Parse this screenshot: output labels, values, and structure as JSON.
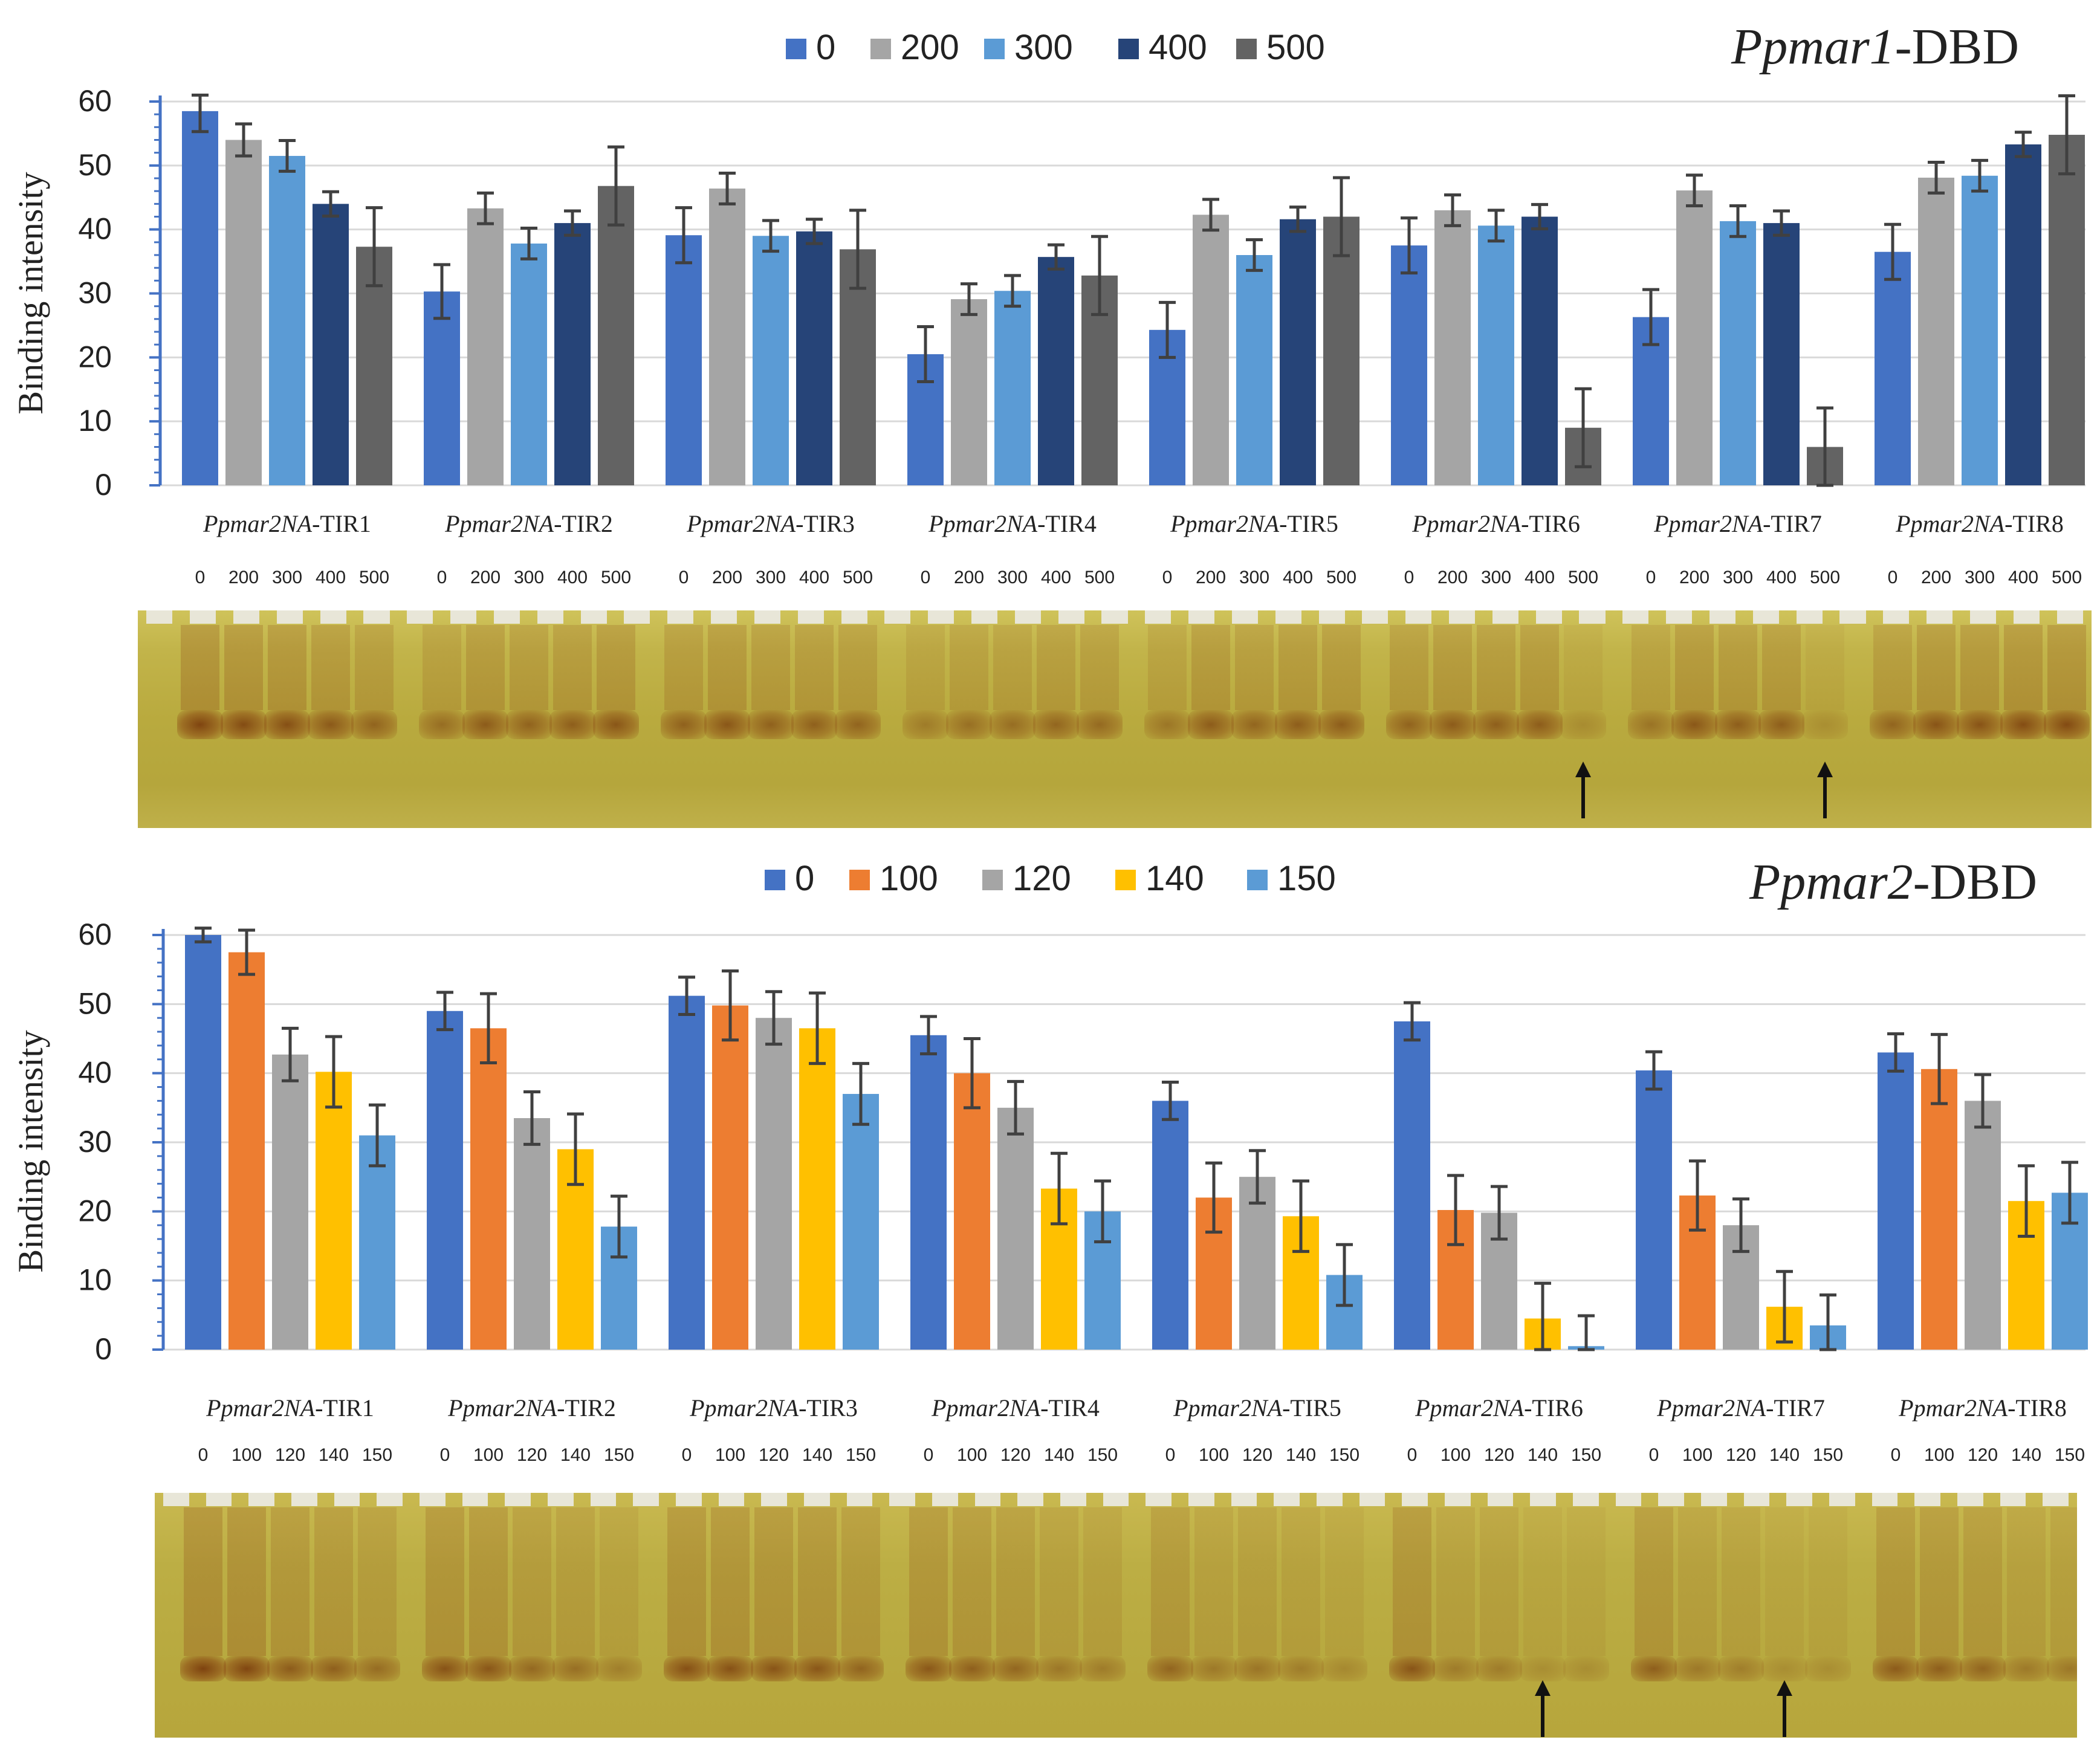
{
  "chart_data": [
    {
      "type": "bar",
      "title": "Ppmar1-DBD",
      "title_italic": "Ppmar1",
      "title_suffix": "-DBD",
      "ylabel": "Binding intensity",
      "xlabel": "",
      "ylim": [
        0,
        60
      ],
      "yticks": [
        "0",
        "10",
        "20",
        "30",
        "40",
        "50",
        "60"
      ],
      "legend_position": "top-center",
      "categories": [
        "Ppmar2NA-TIR1",
        "Ppmar2NA-TIR2",
        "Ppmar2NA-TIR3",
        "Ppmar2NA-TIR4",
        "Ppmar2NA-TIR5",
        "Ppmar2NA-TIR6",
        "Ppmar2NA-TIR7",
        "Ppmar2NA-TIR8"
      ],
      "category_prefix": "Ppmar2NA",
      "category_suffixes": [
        "-TIR1",
        "-TIR2",
        "-TIR3",
        "-TIR4",
        "-TIR5",
        "-TIR6",
        "-TIR7",
        "-TIR8"
      ],
      "lane_labels": [
        "0",
        "200",
        "300",
        "400",
        "500"
      ],
      "arrows_under": [
        "Ppmar2NA-TIR6",
        "Ppmar2NA-TIR7"
      ],
      "series": [
        {
          "name": "0",
          "color": "#4472c4",
          "values": [
            58.5,
            30.3,
            39.1,
            20.5,
            24.3,
            37.5,
            26.3,
            36.5
          ],
          "errors": [
            3.2,
            4.2,
            4.3,
            4.3,
            4.3,
            4.3,
            4.3,
            4.3
          ]
        },
        {
          "name": "200",
          "color": "#a5a5a5",
          "values": [
            54,
            43.3,
            46.4,
            29.1,
            42.3,
            43,
            46.1,
            48.1
          ],
          "errors": [
            2.5,
            2.4,
            2.4,
            2.4,
            2.4,
            2.4,
            2.4,
            2.4
          ]
        },
        {
          "name": "300",
          "color": "#5b9bd5",
          "values": [
            51.5,
            37.8,
            39,
            30.4,
            36,
            40.6,
            41.3,
            48.4
          ],
          "errors": [
            2.4,
            2.4,
            2.4,
            2.4,
            2.4,
            2.4,
            2.4,
            2.4
          ]
        },
        {
          "name": "400",
          "color": "#264478",
          "values": [
            44,
            41,
            39.7,
            35.7,
            41.6,
            42,
            41,
            53.3
          ],
          "errors": [
            1.9,
            1.9,
            1.9,
            1.9,
            1.9,
            1.9,
            1.9,
            1.9
          ]
        },
        {
          "name": "500",
          "color": "#636363",
          "values": [
            37.3,
            46.8,
            36.9,
            32.8,
            42,
            9,
            6,
            54.8
          ],
          "errors": [
            6.1,
            6.1,
            6.1,
            6.1,
            6.1,
            6.1,
            6.1,
            6.1
          ]
        }
      ]
    },
    {
      "type": "bar",
      "title": "Ppmar2-DBD",
      "title_italic": "Ppmar2",
      "title_suffix": "-DBD",
      "ylabel": "Binding intensity",
      "xlabel": "",
      "ylim": [
        0,
        60
      ],
      "yticks": [
        "0",
        "10",
        "20",
        "30",
        "40",
        "50",
        "60"
      ],
      "legend_position": "top-center",
      "categories": [
        "Ppmar2NA-TIR1",
        "Ppmar2NA-TIR2",
        "Ppmar2NA-TIR3",
        "Ppmar2NA-TIR4",
        "Ppmar2NA-TIR5",
        "Ppmar2NA-TIR6",
        "Ppmar2NA-TIR7",
        "Ppmar2NA-TIR8"
      ],
      "category_prefix": "Ppmar2NA",
      "category_suffixes": [
        "-TIR1",
        "-TIR2",
        "-TIR3",
        "-TIR4",
        "-TIR5",
        "-TIR6",
        "-TIR7",
        "-TIR8"
      ],
      "lane_labels": [
        "0",
        "100",
        "120",
        "140",
        "150"
      ],
      "arrows_under": [
        "Ppmar2NA-TIR6",
        "Ppmar2NA-TIR7"
      ],
      "series": [
        {
          "name": "0",
          "color": "#4472c4",
          "values": [
            60,
            49,
            51.2,
            45.5,
            36,
            47.5,
            40.4,
            43
          ],
          "errors": [
            1,
            2.7,
            2.7,
            2.7,
            2.7,
            2.7,
            2.7,
            2.7
          ]
        },
        {
          "name": "100",
          "color": "#ed7d31",
          "values": [
            57.5,
            46.5,
            49.8,
            40,
            22,
            20.2,
            22.3,
            40.6
          ],
          "errors": [
            3.2,
            5,
            5,
            5,
            5,
            5,
            5,
            5
          ]
        },
        {
          "name": "120",
          "color": "#a5a5a5",
          "values": [
            42.7,
            33.5,
            48,
            35,
            25,
            19.8,
            18,
            36
          ],
          "errors": [
            3.8,
            3.8,
            3.8,
            3.8,
            3.8,
            3.8,
            3.8,
            3.8
          ]
        },
        {
          "name": "140",
          "color": "#ffc000",
          "values": [
            40.2,
            29,
            46.5,
            23.3,
            19.3,
            4.5,
            6.2,
            21.5
          ],
          "errors": [
            5.1,
            5.1,
            5.1,
            5.1,
            5.1,
            5.1,
            5.1,
            5.1
          ]
        },
        {
          "name": "150",
          "color": "#5b9bd5",
          "values": [
            31,
            17.8,
            37,
            20,
            10.8,
            0.5,
            3.5,
            22.7
          ],
          "errors": [
            4.4,
            4.4,
            4.4,
            4.4,
            4.4,
            4.4,
            4.4,
            4.4
          ]
        }
      ]
    }
  ]
}
